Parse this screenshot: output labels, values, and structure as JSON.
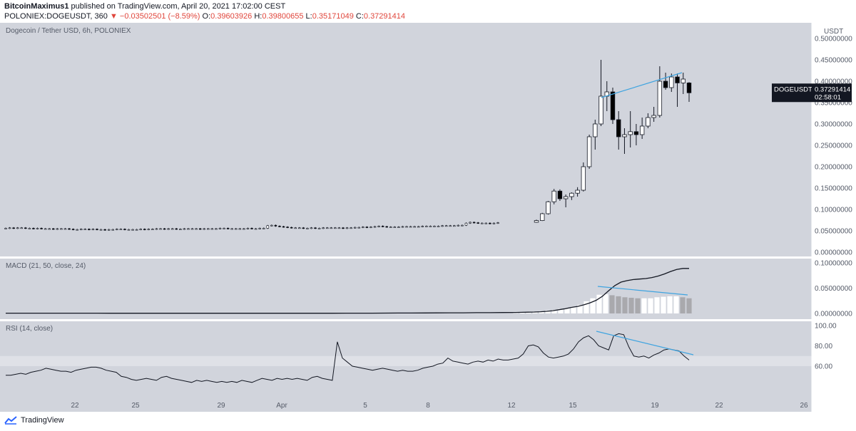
{
  "header": {
    "author": "BitcoinMaximus1",
    "published_text": "published on TradingView.com, April 20, 2021 17:02:00 CEST",
    "symbol_line": "POLONIEX:DOGEUSDT, 360",
    "change": "−0.03502501 (−8.59%)",
    "ohlc": [
      {
        "label": "O:",
        "value": "0.39603926"
      },
      {
        "label": "H:",
        "value": "0.39800655"
      },
      {
        "label": "L:",
        "value": "0.35171049"
      },
      {
        "label": "C:",
        "value": "0.37291414"
      }
    ]
  },
  "footer": {
    "brand": "TradingView"
  },
  "colors": {
    "pane_bg": "#d1d4dc",
    "rsi_band": "#dfe1e7",
    "trendline": "#3fa4e0",
    "up": "#ffffff",
    "down": "#000000",
    "hist_light": "#ffffff",
    "hist_dark": "#a9a9ad"
  },
  "chart_data": [
    {
      "type": "candlestick",
      "title": "Dogecoin / Tether USD, 6h, POLONIEX",
      "currency_label": "USDT",
      "y_ticks": [
        "0.00000000",
        "0.05000000",
        "0.10000000",
        "0.15000000",
        "0.20000000",
        "0.25000000",
        "0.30000000",
        "0.35000000",
        "0.40000000",
        "0.45000000",
        "0.50000000"
      ],
      "ylim": [
        0,
        0.5
      ],
      "x_ticks": [
        "22",
        "25",
        "29",
        "Apr",
        "5",
        "8",
        "12",
        "15",
        "19",
        "22",
        "26"
      ],
      "last_price_label": "DOGEUSDT",
      "last_price": "0.37291414",
      "countdown": "02:58:01",
      "flat_closes": [
        0.056,
        0.057,
        0.056,
        0.057,
        0.057,
        0.056,
        0.056,
        0.055,
        0.056,
        0.055,
        0.055,
        0.055,
        0.054,
        0.055,
        0.055,
        0.055,
        0.054,
        0.053,
        0.053,
        0.054,
        0.054,
        0.053,
        0.054,
        0.053,
        0.053,
        0.052,
        0.053,
        0.053,
        0.054,
        0.054,
        0.053,
        0.053,
        0.053,
        0.053,
        0.054,
        0.053,
        0.054,
        0.054,
        0.055,
        0.055,
        0.054,
        0.055,
        0.055,
        0.054,
        0.054,
        0.055,
        0.055,
        0.055,
        0.055,
        0.054,
        0.055,
        0.055,
        0.055,
        0.055,
        0.056,
        0.056,
        0.055,
        0.055,
        0.055,
        0.055,
        0.055,
        0.056,
        0.055,
        0.055,
        0.056,
        0.056,
        0.062,
        0.063,
        0.061,
        0.06,
        0.059,
        0.058,
        0.057,
        0.057,
        0.057,
        0.056,
        0.056,
        0.057,
        0.056,
        0.056,
        0.057,
        0.057,
        0.057,
        0.057,
        0.057,
        0.056,
        0.057,
        0.057,
        0.058,
        0.058,
        0.059,
        0.058,
        0.059,
        0.06,
        0.061,
        0.06,
        0.059,
        0.059,
        0.059,
        0.059,
        0.06,
        0.06,
        0.06,
        0.06,
        0.06,
        0.061,
        0.061,
        0.061,
        0.061,
        0.061,
        0.062,
        0.062,
        0.062,
        0.062,
        0.063,
        0.063,
        0.068,
        0.07,
        0.069,
        0.068,
        0.068,
        0.068,
        0.067,
        0.068,
        0.069
      ],
      "candles": [
        {
          "o": 0.07,
          "h": 0.076,
          "l": 0.069,
          "c": 0.074
        },
        {
          "o": 0.074,
          "h": 0.092,
          "l": 0.073,
          "c": 0.09
        },
        {
          "o": 0.09,
          "h": 0.12,
          "l": 0.088,
          "c": 0.118
        },
        {
          "o": 0.118,
          "h": 0.148,
          "l": 0.112,
          "c": 0.143
        },
        {
          "o": 0.143,
          "h": 0.147,
          "l": 0.12,
          "c": 0.125
        },
        {
          "o": 0.125,
          "h": 0.135,
          "l": 0.105,
          "c": 0.13
        },
        {
          "o": 0.13,
          "h": 0.14,
          "l": 0.122,
          "c": 0.138
        },
        {
          "o": 0.138,
          "h": 0.152,
          "l": 0.13,
          "c": 0.145
        },
        {
          "o": 0.145,
          "h": 0.21,
          "l": 0.142,
          "c": 0.2
        },
        {
          "o": 0.2,
          "h": 0.275,
          "l": 0.195,
          "c": 0.27
        },
        {
          "o": 0.27,
          "h": 0.31,
          "l": 0.24,
          "c": 0.3
        },
        {
          "o": 0.3,
          "h": 0.45,
          "l": 0.295,
          "c": 0.365
        },
        {
          "o": 0.365,
          "h": 0.4,
          "l": 0.33,
          "c": 0.375
        },
        {
          "o": 0.375,
          "h": 0.385,
          "l": 0.3,
          "c": 0.31
        },
        {
          "o": 0.31,
          "h": 0.33,
          "l": 0.24,
          "c": 0.27
        },
        {
          "o": 0.27,
          "h": 0.29,
          "l": 0.23,
          "c": 0.275
        },
        {
          "o": 0.275,
          "h": 0.33,
          "l": 0.245,
          "c": 0.282
        },
        {
          "o": 0.282,
          "h": 0.3,
          "l": 0.25,
          "c": 0.275
        },
        {
          "o": 0.275,
          "h": 0.315,
          "l": 0.265,
          "c": 0.295
        },
        {
          "o": 0.295,
          "h": 0.325,
          "l": 0.29,
          "c": 0.315
        },
        {
          "o": 0.315,
          "h": 0.34,
          "l": 0.305,
          "c": 0.32
        },
        {
          "o": 0.32,
          "h": 0.435,
          "l": 0.315,
          "c": 0.4
        },
        {
          "o": 0.4,
          "h": 0.42,
          "l": 0.38,
          "c": 0.385
        },
        {
          "o": 0.385,
          "h": 0.418,
          "l": 0.375,
          "c": 0.41
        },
        {
          "o": 0.41,
          "h": 0.418,
          "l": 0.34,
          "c": 0.396
        },
        {
          "o": 0.396,
          "h": 0.42,
          "l": 0.37,
          "c": 0.405
        },
        {
          "o": 0.396,
          "h": 0.398,
          "l": 0.3517,
          "c": 0.3729
        }
      ]
    },
    {
      "type": "line+histogram",
      "title": "MACD (21, 50, close, 24)",
      "y_ticks": [
        "0.00000000",
        "0.05000000",
        "0.10000000"
      ],
      "ylim": [
        0,
        0.1
      ],
      "macd_flat": [
        0.0005,
        0.0005,
        0.0005,
        0.0005,
        0.0005,
        0.0005,
        0.0005,
        0.0005,
        0.0004,
        0.0004,
        0.0004,
        0.0004,
        0.0004,
        0.0004,
        0.0004,
        0.0004,
        0.0004,
        0.0004,
        0.0004,
        0.0004,
        0.0004,
        0.0004,
        0.0004,
        0.0004,
        0.0004,
        0.0004,
        0.0005,
        0.0005,
        0.0006,
        0.0007,
        0.0008,
        0.0009,
        0.001,
        0.0011,
        0.0012,
        0.0013,
        0.0015,
        0.0016,
        0.0018,
        0.002
      ],
      "macd_tail": [
        0.0023,
        0.0025,
        0.0028,
        0.0034,
        0.0042,
        0.0055,
        0.0075,
        0.0095,
        0.012,
        0.014,
        0.017,
        0.021,
        0.026,
        0.034,
        0.045,
        0.055,
        0.062,
        0.065,
        0.067,
        0.068,
        0.069,
        0.071,
        0.074,
        0.078,
        0.083,
        0.087,
        0.089,
        0.089
      ],
      "histogram": [
        0.001,
        0.0015,
        0.002,
        0.003,
        0.004,
        0.006,
        0.007,
        0.009,
        0.011,
        0.013,
        0.017,
        0.024,
        0.03,
        0.037,
        0.038,
        0.036,
        0.034,
        0.032,
        0.031,
        0.03,
        0.03,
        0.03,
        0.032,
        0.033,
        0.034,
        0.034,
        0.032,
        0.03
      ]
    },
    {
      "type": "line",
      "title": "RSI (14, close)",
      "y_ticks": [
        "60.00",
        "80.00",
        "100.00"
      ],
      "ylim": [
        36,
        103
      ],
      "band": [
        60,
        70
      ],
      "values": [
        51,
        51,
        52,
        53,
        52,
        54,
        55,
        56,
        58,
        57,
        56,
        55,
        55,
        54,
        56,
        57,
        58,
        59,
        59,
        58,
        56,
        55,
        54,
        50,
        49,
        47,
        46,
        47,
        48,
        47,
        46,
        49,
        50,
        48,
        47,
        46,
        45,
        44,
        46,
        45,
        46,
        45,
        44,
        45,
        44,
        45,
        44,
        46,
        45,
        44,
        46,
        48,
        47,
        46,
        48,
        47,
        48,
        47,
        48,
        47,
        46,
        49,
        50,
        48,
        47,
        46,
        84,
        68,
        64,
        60,
        59,
        58,
        57,
        56,
        57,
        58,
        57,
        56,
        55,
        56,
        55,
        55,
        56,
        58,
        59,
        60,
        62,
        63,
        68,
        65,
        64,
        63,
        62,
        64,
        65,
        64,
        66,
        65,
        67,
        66,
        66,
        67,
        68,
        72,
        80,
        81,
        79,
        73,
        69,
        68,
        69,
        70,
        72,
        77,
        84,
        88,
        90,
        86,
        80,
        78,
        76,
        90,
        92,
        91,
        79,
        70,
        69,
        70,
        68,
        71,
        73,
        76,
        77,
        76,
        75,
        70,
        66
      ]
    }
  ]
}
